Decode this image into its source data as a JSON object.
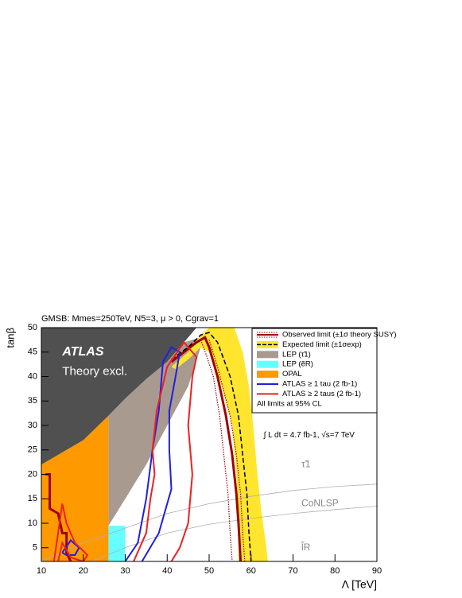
{
  "chart_data": {
    "type": "contour",
    "title": "GMSB: Mmes=250TeV, N5=3, μ > 0, Cgrav=1",
    "x_label": "Λ [TeV]",
    "y_label": "tanβ",
    "xlim": [
      10,
      90
    ],
    "ylim": [
      2.2,
      50
    ],
    "xticks": [
      10,
      20,
      30,
      40,
      50,
      60,
      70,
      80,
      90
    ],
    "yticks": [
      5,
      10,
      15,
      20,
      25,
      30,
      35,
      40,
      45,
      50
    ],
    "series": [
      {
        "name": "Observed limit (±1σ theory SUSY)",
        "color": "#a00000",
        "style": "line",
        "x": [
          11,
          12,
          12,
          14,
          15,
          16,
          16,
          17,
          null,
          41,
          44,
          47,
          49,
          50,
          52,
          54,
          55.5,
          56.5,
          57,
          57.5
        ],
        "values": [
          20,
          20,
          13,
          12,
          8,
          8,
          4,
          2.2,
          null,
          43,
          45,
          47,
          48,
          46,
          40,
          32,
          24,
          16,
          10,
          2.2
        ],
        "theory": [
          {
            "x": [
              48,
              49.5,
              51,
              52.5,
              53.5,
              54.5,
              55,
              55.5
            ],
            "values": [
              47.5,
              44,
              40,
              32,
              24,
              16,
              8,
              2.2
            ]
          },
          {
            "x": [
              50,
              52,
              55,
              56.5,
              57.5,
              58,
              58.5
            ],
            "values": [
              47.5,
              42,
              32,
              24,
              16,
              8,
              2.2
            ]
          }
        ]
      },
      {
        "name": "Expected limit (±1σexp)",
        "color": "#000000",
        "style": "dashed",
        "x": [
          41,
          45,
          48,
          50,
          52,
          55,
          57,
          58,
          59,
          59.5,
          60
        ],
        "values": [
          43.5,
          46,
          48.5,
          49,
          47,
          40,
          32,
          24,
          16,
          8,
          2.2
        ],
        "band": {
          "color": "#ffe52e",
          "x": [
            41,
            45,
            48,
            50,
            56,
            58,
            59.5,
            60.5,
            61.5,
            62.5,
            63.5,
            64,
            57,
            57,
            56.5,
            55.5,
            53,
            50,
            48,
            45,
            42
          ],
          "values": [
            42,
            45,
            48.5,
            50,
            50,
            45,
            38,
            30,
            20,
            12,
            6,
            2.2,
            2.2,
            10,
            20,
            30,
            38,
            45,
            46,
            43.5,
            41.5
          ]
        }
      },
      {
        "name": "LEP (τ̃1)",
        "color": "#a89a8f",
        "style": "fill",
        "x": [
          26,
          30,
          35,
          40,
          45,
          48,
          48,
          44,
          40,
          35,
          30,
          26
        ],
        "values": [
          9.5,
          15,
          22,
          30,
          38,
          46,
          48,
          47,
          43,
          39.5,
          35.5,
          32
        ]
      },
      {
        "name": "LEP (ẽR)",
        "color": "#66ffff",
        "style": "fill",
        "x": [
          26,
          30,
          30,
          26
        ],
        "values": [
          2.2,
          2.2,
          9.5,
          9.5
        ]
      },
      {
        "name": "OPAL",
        "color": "#ff9900",
        "style": "fill",
        "x": [
          10,
          26,
          26,
          20,
          10
        ],
        "values": [
          2.2,
          2.2,
          32,
          27,
          22
        ]
      },
      {
        "name": "ATLAS ≥ 1 tau (2 fb-1)",
        "color": "#1f1fe0",
        "style": "line",
        "x": [
          30,
          33,
          35,
          36.5,
          38,
          39,
          41,
          43,
          42,
          40.5,
          40.5,
          41,
          38,
          34,
          null,
          15,
          17,
          19,
          18,
          16,
          15
        ],
        "values": [
          2.2,
          6,
          15,
          25,
          33,
          43,
          46,
          45,
          40,
          33,
          25,
          17,
          8,
          2.2,
          null,
          4,
          6.5,
          5,
          3.5,
          3.5,
          4
        ]
      },
      {
        "name": "ATLAS ≥ 2 taus (2 fb-1)",
        "color": "#ee2020",
        "style": "line",
        "x": [
          32,
          35,
          36,
          37,
          36.5,
          37.5,
          40,
          44,
          47,
          46,
          45,
          46,
          45,
          43,
          41,
          null,
          13,
          14,
          15,
          16,
          18,
          21,
          20,
          17,
          15,
          14
        ],
        "values": [
          2.2,
          8,
          15,
          20,
          25,
          33,
          42,
          47,
          44,
          40,
          30,
          20,
          10,
          5,
          2.2,
          null,
          2.2,
          8,
          14,
          10,
          6,
          3.5,
          2.2,
          3,
          6,
          2.2
        ]
      },
      {
        "color": "#505050",
        "style": "fill",
        "x": [
          10,
          20,
          26,
          30,
          35,
          40,
          44,
          47,
          10
        ],
        "values": [
          22,
          27,
          32,
          35.5,
          39.5,
          43,
          47,
          50,
          50
        ]
      },
      {
        "color": "#b0b0b0",
        "style": "thin",
        "x": [
          10,
          20,
          30,
          40,
          50,
          60,
          70,
          80,
          90
        ],
        "values": [
          2.2,
          6,
          9,
          12,
          14,
          15.5,
          16.7,
          17.5,
          18
        ]
      },
      {
        "color": "#b0b0b0",
        "style": "thin",
        "x": [
          22,
          30,
          40,
          50,
          60,
          70,
          80,
          90
        ],
        "values": [
          2.2,
          5,
          8,
          9.8,
          11,
          12,
          12.8,
          13.5
        ]
      }
    ],
    "legend_note": "All limits at 95% CL",
    "annotations": [
      {
        "text": "ATLAS",
        "x": 15,
        "y": 45
      },
      {
        "text": "Theory excl.",
        "x": 15,
        "y": 41
      },
      {
        "text": "∫ L dt = 4.7 fb-1, √s=7 TeV",
        "x": 63,
        "y": 28
      },
      {
        "text": "τ̃1",
        "x": 72,
        "y": 22
      },
      {
        "text": "CoNLSP",
        "x": 72,
        "y": 14
      },
      {
        "text": "l̃R",
        "x": 72,
        "y": 5
      }
    ]
  }
}
